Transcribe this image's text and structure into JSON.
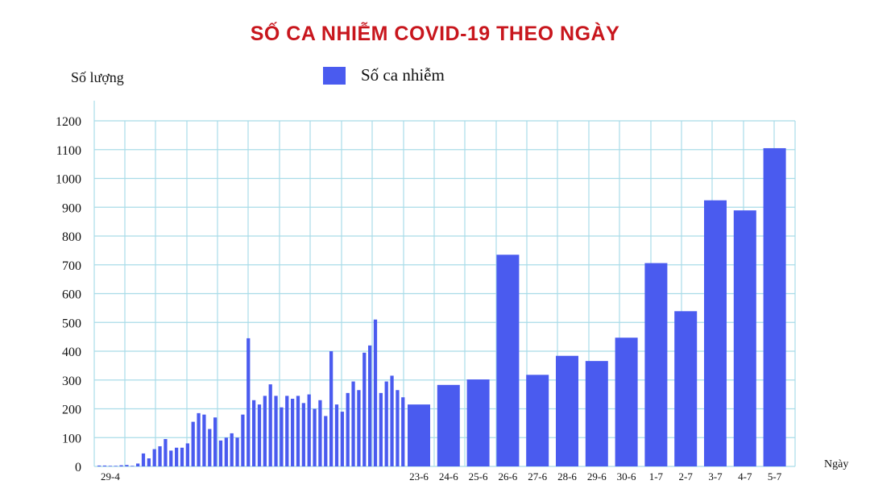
{
  "chart_data": {
    "type": "bar",
    "title": "SỐ CA NHIỄM COVID-19 THEO NGÀY",
    "ylabel": "Số lượng",
    "xlabel": "Ngày",
    "legend": "Số ca nhiễm",
    "ylim": [
      0,
      1200
    ],
    "yticks": [
      0,
      100,
      200,
      300,
      400,
      500,
      600,
      700,
      800,
      900,
      1000,
      1100,
      1200
    ],
    "grid": true,
    "bar_color": "#4a5bef",
    "early_period": {
      "first_label": "29-4",
      "values": [
        3,
        3,
        2,
        2,
        4,
        5,
        2,
        10,
        45,
        28,
        60,
        70,
        95,
        55,
        65,
        65,
        80,
        155,
        185,
        180,
        130,
        170,
        90,
        100,
        115,
        100,
        180,
        445,
        230,
        215,
        245,
        285,
        245,
        205,
        245,
        235,
        245,
        220,
        250,
        200,
        230,
        175,
        400,
        215,
        190,
        255,
        295,
        265,
        395,
        420,
        510,
        255,
        295,
        315,
        265,
        240
      ]
    },
    "recent_days": {
      "categories": [
        "23-6",
        "24-6",
        "25-6",
        "26-6",
        "27-6",
        "28-6",
        "29-6",
        "30-6",
        "1-7",
        "2-7",
        "3-7",
        "4-7",
        "5-7"
      ],
      "values": [
        215,
        283,
        302,
        735,
        318,
        384,
        366,
        447,
        706,
        539,
        924,
        889,
        1105
      ]
    }
  }
}
